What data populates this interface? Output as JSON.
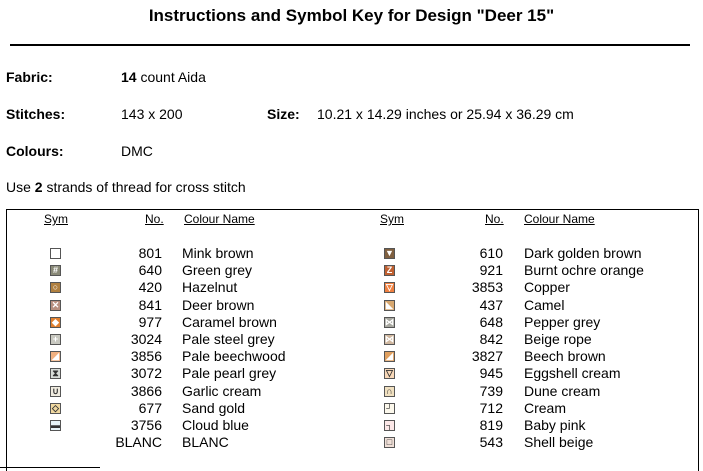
{
  "title": "Instructions and Symbol Key for Design \"Deer 15\"",
  "fabric": {
    "label": "Fabric:",
    "count": "14",
    "suffix": " count Aida"
  },
  "stitches": {
    "label": "Stitches:",
    "value": "143 x 200"
  },
  "size": {
    "label": "Size:",
    "value": "10.21 x 14.29 inches or 25.94 x 36.29 cm"
  },
  "colours": {
    "label": "Colours:",
    "value": "DMC"
  },
  "strands": {
    "pre": "Use ",
    "num": "2",
    "post": " strands of thread for cross stitch"
  },
  "headers": {
    "sym": "Sym",
    "no": "No.",
    "name": "Colour Name"
  },
  "left": [
    {
      "no": "801",
      "name": "Mink brown",
      "color": "#ffffff",
      "glyph": "",
      "icon": "empty-square-icon"
    },
    {
      "no": "640",
      "name": "Green grey",
      "color": "#8a8a78",
      "glyph": "#",
      "icon": "hash-symbol-icon"
    },
    {
      "no": "420",
      "name": "Hazelnut",
      "color": "#b08040",
      "glyph": "○",
      "icon": "circle-symbol-icon"
    },
    {
      "no": "841",
      "name": "Deer brown",
      "color": "#b89080",
      "glyph": "✕",
      "icon": "cross-symbol-icon"
    },
    {
      "no": "977",
      "name": "Caramel brown",
      "color": "#e08030",
      "glyph": "◆",
      "icon": "diamond-symbol-icon"
    },
    {
      "no": "3024",
      "name": "Pale steel grey",
      "color": "#c8c8c0",
      "glyph": "+",
      "icon": "plus-symbol-icon"
    },
    {
      "no": "3856",
      "name": "Pale beechwood",
      "color": "#f0b080",
      "glyph": "◢",
      "icon": "triangle-symbol-icon"
    },
    {
      "no": "3072",
      "name": "Pale pearl grey",
      "color": "#d8dcd8",
      "glyph": "⧗",
      "icon": "hourglass-symbol-icon"
    },
    {
      "no": "3866",
      "name": "Garlic cream",
      "color": "#f0ece0",
      "glyph": "∪",
      "icon": "cup-symbol-icon"
    },
    {
      "no": "677",
      "name": "Sand gold",
      "color": "#f0d8a0",
      "glyph": "◇",
      "icon": "open-diamond-symbol-icon"
    },
    {
      "no": "3756",
      "name": "Cloud blue",
      "color": "#e8f4f8",
      "glyph": "▬",
      "icon": "bar-symbol-icon"
    },
    {
      "no": "BLANC",
      "name": "BLANC",
      "color": "#ffffff",
      "glyph": "",
      "icon": "blank-symbol-icon"
    }
  ],
  "right": [
    {
      "no": "610",
      "name": "Dark golden brown",
      "color": "#806040",
      "glyph": "▼",
      "icon": "down-triangle-symbol-icon"
    },
    {
      "no": "921",
      "name": "Burnt ochre orange",
      "color": "#c06030",
      "glyph": "Z",
      "icon": "z-symbol-icon"
    },
    {
      "no": "3853",
      "name": "Copper",
      "color": "#f08040",
      "glyph": "▽",
      "icon": "open-down-triangle-symbol-icon"
    },
    {
      "no": "437",
      "name": "Camel",
      "color": "#d8a870",
      "glyph": "◣",
      "icon": "corner-triangle-symbol-icon"
    },
    {
      "no": "648",
      "name": "Pepper grey",
      "color": "#a8a8a0",
      "glyph": "⋈",
      "icon": "bowtie-symbol-icon"
    },
    {
      "no": "842",
      "name": "Beige rope",
      "color": "#d0b8a0",
      "glyph": "⋈",
      "icon": "bowtie-outline-symbol-icon"
    },
    {
      "no": "3827",
      "name": "Beech brown",
      "color": "#e0a060",
      "glyph": "◢",
      "icon": "filled-triangle-symbol-icon"
    },
    {
      "no": "945",
      "name": "Eggshell cream",
      "color": "#f8d8b8",
      "glyph": "▽",
      "icon": "small-down-triangle-symbol-icon"
    },
    {
      "no": "739",
      "name": "Dune cream",
      "color": "#f0e0c0",
      "glyph": "∩",
      "icon": "cap-symbol-icon"
    },
    {
      "no": "712",
      "name": "Cream",
      "color": "#fcf8ec",
      "glyph": "┘",
      "icon": "corner-symbol-icon"
    },
    {
      "no": "819",
      "name": "Baby pink",
      "color": "#fce8e8",
      "glyph": "┐",
      "icon": "top-corner-symbol-icon"
    },
    {
      "no": "543",
      "name": "Shell beige",
      "color": "#f0e0d8",
      "glyph": "□",
      "icon": "framed-square-symbol-icon"
    }
  ]
}
